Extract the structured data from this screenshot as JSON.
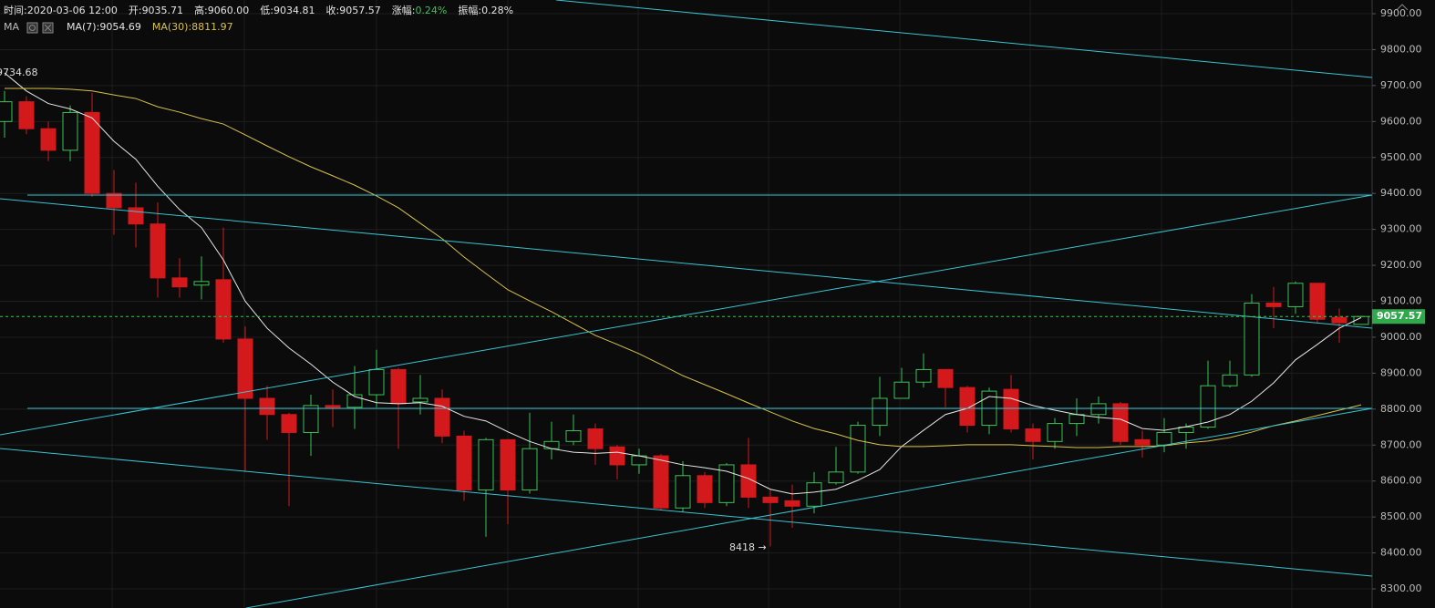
{
  "chart_data": {
    "type": "candlestick",
    "info": [
      {
        "label": "时间:",
        "value": "2020-03-06 12:00"
      },
      {
        "label": "开:",
        "value": "9035.71"
      },
      {
        "label": "高:",
        "value": "9060.00"
      },
      {
        "label": "低:",
        "value": "9034.81"
      },
      {
        "label": "收:",
        "value": "9057.57"
      },
      {
        "label": "涨幅:",
        "value": "0.24%"
      },
      {
        "label": "振幅:",
        "value": "0.28%"
      }
    ],
    "indicator": "MA",
    "separator": ":",
    "up_color": "#3fc156",
    "down_color": "#d3191b",
    "candles": {
      "open": [
        9600,
        9655,
        9580,
        9520,
        9625,
        9400,
        9360,
        9315,
        9165,
        9145,
        9160,
        8995,
        8830,
        8785,
        8735,
        8810,
        8805,
        8840,
        8910,
        8820,
        8830,
        8725,
        8575,
        8715,
        8575,
        8690,
        8710,
        8745,
        8695,
        8645,
        8670,
        8525,
        8615,
        8540,
        8645,
        8555,
        8545,
        8530,
        8595,
        8625,
        8755,
        8830,
        8875,
        8910,
        8860,
        8755,
        8855,
        8745,
        8710,
        8760,
        8785,
        8815,
        8715,
        8700,
        8735,
        8750,
        8865,
        8895,
        9095,
        9085,
        9150,
        9055,
        9035.71
      ],
      "high": [
        9685,
        9670,
        9600,
        9645,
        9680,
        9465,
        9430,
        9375,
        9220,
        9225,
        9305,
        9030,
        8865,
        8790,
        8840,
        8855,
        8920,
        8965,
        8915,
        8895,
        8855,
        8740,
        8720,
        8715,
        8790,
        8765,
        8785,
        8760,
        8700,
        8690,
        8675,
        8655,
        8625,
        8650,
        8720,
        8575,
        8590,
        8625,
        8695,
        8765,
        8890,
        8915,
        8955,
        8910,
        8865,
        8860,
        8895,
        8760,
        8775,
        8830,
        8835,
        8820,
        8740,
        8775,
        8760,
        8935,
        8935,
        9120,
        9140,
        9155,
        9150,
        9080,
        9060
      ],
      "low": [
        9555,
        9565,
        9490,
        9490,
        9390,
        9285,
        9250,
        9110,
        9110,
        9105,
        8985,
        8625,
        8715,
        8530,
        8670,
        8750,
        8745,
        8805,
        8690,
        8785,
        8705,
        8545,
        8445,
        8480,
        8565,
        8660,
        8700,
        8645,
        8605,
        8620,
        8520,
        8515,
        8525,
        8530,
        8525,
        8418,
        8470,
        8510,
        8590,
        8620,
        8725,
        8830,
        8860,
        8805,
        8735,
        8730,
        8735,
        8660,
        8690,
        8725,
        8760,
        8700,
        8665,
        8680,
        8690,
        8745,
        8860,
        8890,
        9025,
        9065,
        9040,
        8985,
        9034.81
      ],
      "close": [
        9655,
        9580,
        9520,
        9625,
        9400,
        9360,
        9315,
        9165,
        9140,
        9155,
        8995,
        8830,
        8785,
        8735,
        8810,
        8805,
        8840,
        8910,
        8815,
        8830,
        8725,
        8575,
        8715,
        8575,
        8690,
        8710,
        8740,
        8690,
        8645,
        8670,
        8525,
        8615,
        8540,
        8645,
        8555,
        8540,
        8530,
        8595,
        8625,
        8755,
        8830,
        8875,
        8910,
        8860,
        8755,
        8850,
        8745,
        8710,
        8760,
        8785,
        8815,
        8710,
        8700,
        8735,
        8750,
        8865,
        8895,
        9095,
        9085,
        9150,
        9050,
        9040,
        9057.57
      ]
    },
    "series": [
      {
        "name": "MA(7)",
        "color": "#e8e8e8",
        "legend_value": "9054.69",
        "values": [
          9735,
          9685,
          9650,
          9635,
          9610,
          9545,
          9495,
          9420,
          9355,
          9305,
          9215,
          9100,
          9025,
          8970,
          8925,
          8875,
          8835,
          8818,
          8815,
          8818,
          8808,
          8780,
          8767,
          8737,
          8710,
          8690,
          8680,
          8677,
          8680,
          8670,
          8658,
          8645,
          8637,
          8627,
          8607,
          8577,
          8564,
          8569,
          8577,
          8602,
          8632,
          8696,
          8741,
          8785,
          8802,
          8835,
          8830,
          8810,
          8797,
          8785,
          8777,
          8772,
          8746,
          8741,
          8751,
          8764,
          8785,
          8822,
          8873,
          8937,
          8980,
          9025,
          9054.69
        ]
      },
      {
        "name": "MA(30)",
        "color": "#d8c24a",
        "legend_value": "8811.97",
        "values": [
          9692,
          9692,
          9692,
          9690,
          9685,
          9674,
          9664,
          9641,
          9626,
          9608,
          9593,
          9563,
          9532,
          9502,
          9474,
          9449,
          9423,
          9393,
          9360,
          9317,
          9274,
          9223,
          9177,
          9132,
          9101,
          9071,
          9038,
          9005,
          8980,
          8954,
          8924,
          8893,
          8868,
          8843,
          8817,
          8792,
          8767,
          8746,
          8731,
          8713,
          8701,
          8696,
          8696,
          8698,
          8701,
          8701,
          8701,
          8698,
          8696,
          8693,
          8693,
          8696,
          8696,
          8698,
          8706,
          8711,
          8721,
          8736,
          8754,
          8767,
          8782,
          8797,
          8811.97
        ]
      }
    ],
    "annotations": [
      "9734.68",
      "8418 →"
    ],
    "last_price": 9057.57,
    "ylim": [
      8300,
      9900
    ],
    "yticks": [
      {
        "value": 8300,
        "label": "8300.00"
      },
      {
        "value": 8400,
        "label": "8400.00"
      },
      {
        "value": 8500,
        "label": "8500.00"
      },
      {
        "value": 8600,
        "label": "8600.00"
      },
      {
        "value": 8700,
        "label": "8700.00"
      },
      {
        "value": 8800,
        "label": "8800.00"
      },
      {
        "value": 8900,
        "label": "8900.00"
      },
      {
        "value": 9000,
        "label": "9000.00"
      },
      {
        "value": 9100,
        "label": "9100.00"
      },
      {
        "value": 9200,
        "label": "9200.00"
      },
      {
        "value": 9300,
        "label": "9300.00"
      },
      {
        "value": 9400,
        "label": "9400.00"
      },
      {
        "value": 9500,
        "label": "9500.00"
      },
      {
        "value": 9600,
        "label": "9600.00"
      },
      {
        "value": 9700,
        "label": "9700.00"
      },
      {
        "value": 9800,
        "label": "9800.00"
      },
      {
        "value": 9900,
        "label": "9900.00"
      }
    ],
    "grid": true
  }
}
